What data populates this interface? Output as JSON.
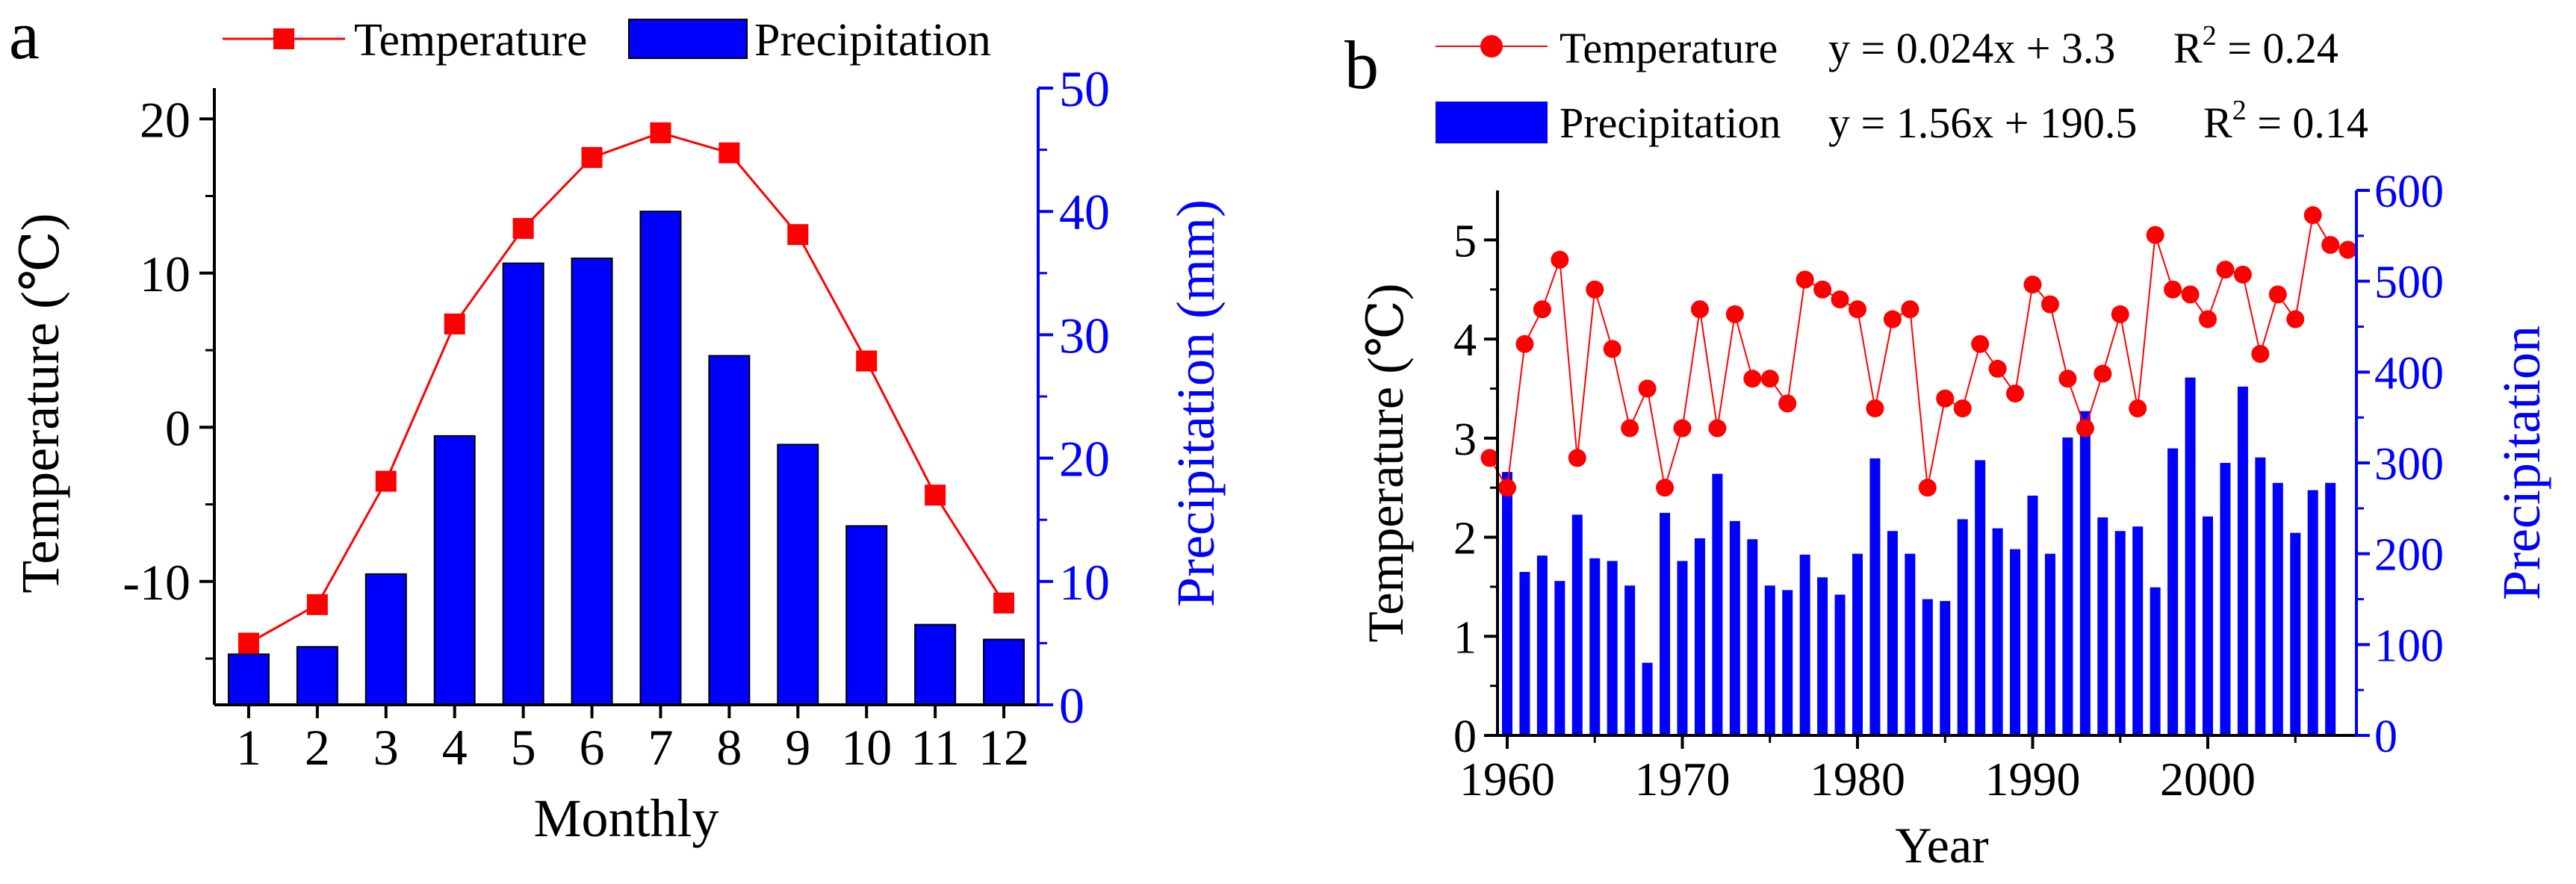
{
  "colors": {
    "temperature": "#ff0000",
    "precipitation": "#0000ff",
    "axis": "#000000",
    "background": "#ffffff"
  },
  "chart_data": [
    {
      "panel_label": "a",
      "type": "bar+line",
      "xlabel": "Monthly",
      "ylabel_left": "Temperature (℃)",
      "ylabel_right": "Precipitation (mm)",
      "categories": [
        "1",
        "2",
        "3",
        "4",
        "5",
        "6",
        "7",
        "8",
        "9",
        "10",
        "11",
        "12"
      ],
      "ylim_left": [
        -18,
        22
      ],
      "ylim_right": [
        0,
        50
      ],
      "left_ticks": [
        "-10",
        "0",
        "10",
        "20"
      ],
      "right_ticks": [
        "0",
        "10",
        "20",
        "30",
        "40",
        "50"
      ],
      "legend": [
        {
          "name": "Temperature",
          "mark": "line-square"
        },
        {
          "name": "Precipitation",
          "mark": "bar"
        }
      ],
      "series": [
        {
          "name": "Temperature",
          "axis": "left",
          "type": "line",
          "values": [
            -14,
            -11.5,
            -3.5,
            6.7,
            12.9,
            17.5,
            19.1,
            17.8,
            12.5,
            4.3,
            -4.4,
            -11.4
          ]
        },
        {
          "name": "Precipitation",
          "axis": "right",
          "type": "bar",
          "values": [
            4.1,
            4.7,
            10.6,
            21.8,
            35.8,
            36.2,
            40,
            28.3,
            21.1,
            14.5,
            6.5,
            5.3
          ]
        }
      ]
    },
    {
      "panel_label": "b",
      "type": "bar+line",
      "xlabel": "Year",
      "ylabel_left": "Temperature (℃)",
      "ylabel_right": "Precipitation",
      "x_ticks": [
        "1960",
        "1970",
        "1980",
        "1990",
        "2000"
      ],
      "ylim_left": [
        0,
        5.5
      ],
      "ylim_right": [
        0,
        600
      ],
      "left_ticks": [
        "0",
        "1",
        "2",
        "3",
        "4",
        "5"
      ],
      "right_ticks": [
        "0",
        "100",
        "200",
        "300",
        "400",
        "500",
        "600"
      ],
      "legend": [
        {
          "name": "Temperature",
          "equation": "y = 0.024x + 3.3",
          "r2_base": "R",
          "r2_exp": "2",
          "r2_value": " = 0.24",
          "mark": "line-circle"
        },
        {
          "name": "Precipitation",
          "equation": "y = 1.56x + 190.5",
          "r2_base": "R",
          "r2_exp": "2",
          "r2_value": " = 0.14",
          "mark": "bar"
        }
      ],
      "x": [
        1959,
        1960,
        1961,
        1962,
        1963,
        1964,
        1965,
        1966,
        1967,
        1968,
        1969,
        1970,
        1971,
        1972,
        1973,
        1974,
        1975,
        1976,
        1977,
        1978,
        1979,
        1980,
        1981,
        1982,
        1983,
        1984,
        1985,
        1986,
        1987,
        1988,
        1989,
        1990,
        1991,
        1992,
        1993,
        1994,
        1995,
        1996,
        1997,
        1998,
        1999,
        2000,
        2001,
        2002,
        2003,
        2004,
        2005,
        2006,
        2007,
        2008
      ],
      "series": [
        {
          "name": "Temperature",
          "axis": "left",
          "type": "line",
          "values": [
            2.8,
            2.5,
            3.95,
            4.3,
            4.8,
            2.8,
            4.5,
            3.9,
            3.1,
            3.5,
            2.5,
            3.1,
            4.3,
            3.1,
            4.25,
            3.6,
            3.6,
            3.35,
            4.6,
            4.5,
            4.4,
            4.3,
            3.3,
            4.2,
            4.3,
            2.5,
            3.4,
            3.3,
            3.95,
            3.7,
            3.45,
            4.55,
            4.35,
            3.6,
            3.1,
            3.65,
            4.25,
            3.3,
            5.05,
            4.5,
            4.45,
            4.2,
            4.7,
            4.65,
            3.85,
            4.45,
            4.2,
            5.25,
            4.95,
            4.9
          ]
        },
        {
          "name": "Precipitation",
          "axis": "right",
          "type": "bar",
          "values": [
            0,
            290,
            180,
            198,
            170,
            243,
            195,
            192,
            165,
            80,
            245,
            192,
            217,
            288,
            236,
            216,
            165,
            160,
            199,
            174,
            155,
            200,
            305,
            225,
            200,
            150,
            148,
            238,
            303,
            228,
            205,
            264,
            200,
            328,
            357,
            240,
            225,
            230,
            163,
            316,
            394,
            241,
            300,
            384,
            306,
            278,
            223,
            270,
            278,
            0
          ]
        }
      ]
    }
  ]
}
